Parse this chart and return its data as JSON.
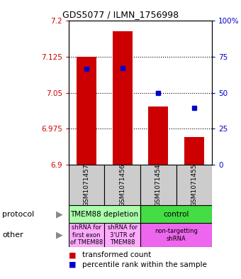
{
  "title": "GDS5077 / ILMN_1756998",
  "samples": [
    "GSM1071457",
    "GSM1071456",
    "GSM1071454",
    "GSM1071455"
  ],
  "bar_values": [
    7.125,
    7.178,
    7.022,
    6.958
  ],
  "bar_base": 6.9,
  "percentile_values": [
    7.1,
    7.102,
    7.05,
    7.018
  ],
  "ylim": [
    6.9,
    7.2
  ],
  "yticks_left": [
    6.9,
    6.975,
    7.05,
    7.125,
    7.2
  ],
  "yticks_right": [
    0,
    25,
    50,
    75,
    100
  ],
  "bar_color": "#cc0000",
  "dot_color": "#0000cc",
  "bar_width": 0.55,
  "protocol_row": [
    {
      "label": "TMEM88 depletion",
      "cols": [
        0,
        1
      ],
      "color": "#aaffaa"
    },
    {
      "label": "control",
      "cols": [
        2,
        3
      ],
      "color": "#44dd44"
    }
  ],
  "other_row": [
    {
      "label": "shRNA for\nfirst exon\nof TMEM88",
      "cols": [
        0
      ],
      "color": "#ffaaff"
    },
    {
      "label": "shRNA for\n3'UTR of\nTMEM88",
      "cols": [
        1
      ],
      "color": "#ffaaff"
    },
    {
      "label": "non-targetting\nshRNA",
      "cols": [
        2,
        3
      ],
      "color": "#ee66ee"
    }
  ],
  "legend_red_label": "transformed count",
  "legend_blue_label": "percentile rank within the sample",
  "left_label_protocol": "protocol",
  "left_label_other": "other"
}
